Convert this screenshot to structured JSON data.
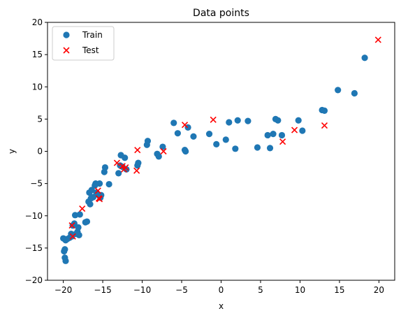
{
  "chart_data": {
    "type": "scatter",
    "title": "Data points",
    "xlabel": "x",
    "ylabel": "y",
    "xlim": [
      -22,
      22
    ],
    "ylim": [
      -20,
      20
    ],
    "xticks": [
      -20,
      -15,
      -10,
      -5,
      0,
      5,
      10,
      15,
      20
    ],
    "yticks": [
      -20,
      -15,
      -10,
      -5,
      0,
      5,
      10,
      15,
      20
    ],
    "grid": false,
    "legend_position": "top-left",
    "series": [
      {
        "name": "Train",
        "marker": "circle",
        "color": "#1f77b4",
        "points": [
          [
            -20.0,
            -13.5
          ],
          [
            -19.9,
            -15.5
          ],
          [
            -19.8,
            -16.5
          ],
          [
            -19.7,
            -17.0
          ],
          [
            -19.8,
            -15.2
          ],
          [
            -19.7,
            -13.8
          ],
          [
            -19.5,
            -13.6
          ],
          [
            -19.2,
            -13.4
          ],
          [
            -19.0,
            -12.8
          ],
          [
            -18.9,
            -13.2
          ],
          [
            -18.8,
            -11.5
          ],
          [
            -18.6,
            -11.2
          ],
          [
            -18.5,
            -9.9
          ],
          [
            -18.4,
            -12.8
          ],
          [
            -18.2,
            -12.5
          ],
          [
            -18.1,
            -11.8
          ],
          [
            -18.0,
            -13.0
          ],
          [
            -17.9,
            -9.8
          ],
          [
            -17.2,
            -11.0
          ],
          [
            -17.0,
            -10.9
          ],
          [
            -16.8,
            -7.8
          ],
          [
            -16.6,
            -8.2
          ],
          [
            -16.7,
            -6.4
          ],
          [
            -16.5,
            -7.3
          ],
          [
            -16.4,
            -6.0
          ],
          [
            -16.2,
            -7.1
          ],
          [
            -16.0,
            -5.3
          ],
          [
            -15.9,
            -5.0
          ],
          [
            -15.8,
            -6.4
          ],
          [
            -15.5,
            -6.8
          ],
          [
            -15.4,
            -5.0
          ],
          [
            -15.3,
            -7.2
          ],
          [
            -15.2,
            -6.8
          ],
          [
            -14.7,
            -2.5
          ],
          [
            -14.8,
            -3.2
          ],
          [
            -14.2,
            -5.1
          ],
          [
            -13.0,
            -3.4
          ],
          [
            -12.8,
            -2.2
          ],
          [
            -12.7,
            -0.6
          ],
          [
            -12.5,
            -2.4
          ],
          [
            -12.2,
            -1.0
          ],
          [
            -12.0,
            -2.8
          ],
          [
            -10.6,
            -2.2
          ],
          [
            -10.5,
            -1.8
          ],
          [
            -9.4,
            1.0
          ],
          [
            -9.3,
            1.6
          ],
          [
            -8.1,
            -0.4
          ],
          [
            -7.9,
            -0.8
          ],
          [
            -7.4,
            0.7
          ],
          [
            -6.0,
            4.4
          ],
          [
            -5.5,
            2.8
          ],
          [
            -4.6,
            0.2
          ],
          [
            -4.5,
            0.0
          ],
          [
            -4.2,
            3.7
          ],
          [
            -3.5,
            2.3
          ],
          [
            -1.5,
            2.7
          ],
          [
            -0.6,
            1.1
          ],
          [
            0.6,
            1.8
          ],
          [
            1.0,
            4.5
          ],
          [
            1.8,
            0.4
          ],
          [
            2.1,
            4.8
          ],
          [
            3.4,
            4.7
          ],
          [
            4.6,
            0.6
          ],
          [
            5.9,
            2.5
          ],
          [
            6.2,
            0.5
          ],
          [
            6.6,
            2.7
          ],
          [
            6.9,
            5.0
          ],
          [
            7.2,
            4.8
          ],
          [
            7.7,
            2.5
          ],
          [
            9.8,
            4.8
          ],
          [
            10.3,
            3.2
          ],
          [
            12.8,
            6.4
          ],
          [
            13.1,
            6.3
          ],
          [
            14.8,
            9.5
          ],
          [
            16.9,
            9.0
          ],
          [
            18.2,
            14.5
          ]
        ]
      },
      {
        "name": "Test",
        "marker": "x",
        "color": "#ff0000",
        "points": [
          [
            -18.9,
            -11.5
          ],
          [
            -18.8,
            -13.2
          ],
          [
            -17.6,
            -8.9
          ],
          [
            -15.6,
            -6.1
          ],
          [
            -15.5,
            -7.3
          ],
          [
            -15.4,
            -7.4
          ],
          [
            -13.2,
            -1.8
          ],
          [
            -12.5,
            -2.3
          ],
          [
            -12.3,
            -2.8
          ],
          [
            -12.1,
            -2.5
          ],
          [
            -10.6,
            0.2
          ],
          [
            -10.7,
            -3.0
          ],
          [
            -7.3,
            0.0
          ],
          [
            -4.6,
            4.1
          ],
          [
            -1.0,
            4.9
          ],
          [
            7.8,
            1.5
          ],
          [
            9.3,
            3.3
          ],
          [
            13.1,
            4.0
          ],
          [
            19.9,
            17.3
          ]
        ]
      }
    ]
  }
}
